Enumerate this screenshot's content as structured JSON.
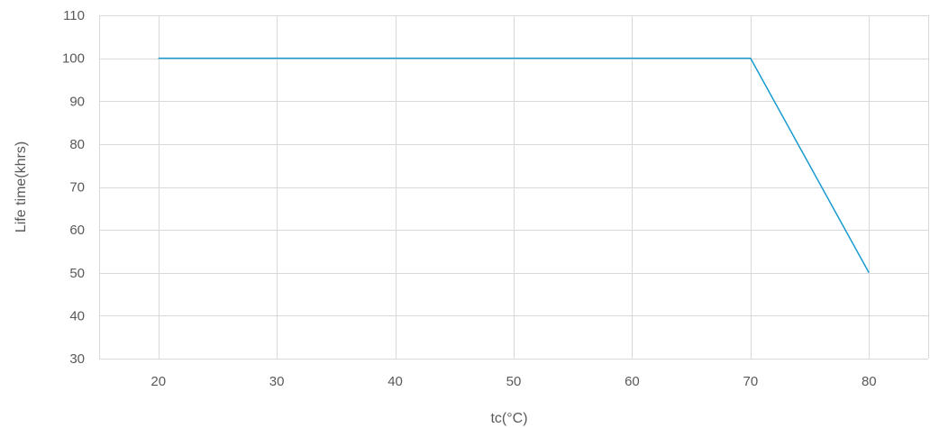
{
  "chart_data": {
    "type": "line",
    "xlabel": "tc(°C)",
    "ylabel": "Life time(khrs)",
    "xlim": [
      15,
      85
    ],
    "ylim": [
      30,
      110
    ],
    "x_ticks": [
      20,
      30,
      40,
      50,
      60,
      70,
      80
    ],
    "y_ticks": [
      30,
      40,
      50,
      60,
      70,
      80,
      90,
      100,
      110
    ],
    "grid": true,
    "series": [
      {
        "color": "#1a9bd0",
        "x": [
          20,
          70,
          80
        ],
        "y": [
          100,
          100,
          50
        ]
      }
    ],
    "colors": {
      "grid": "#d9d9d9",
      "axis_text": "#595959"
    }
  }
}
